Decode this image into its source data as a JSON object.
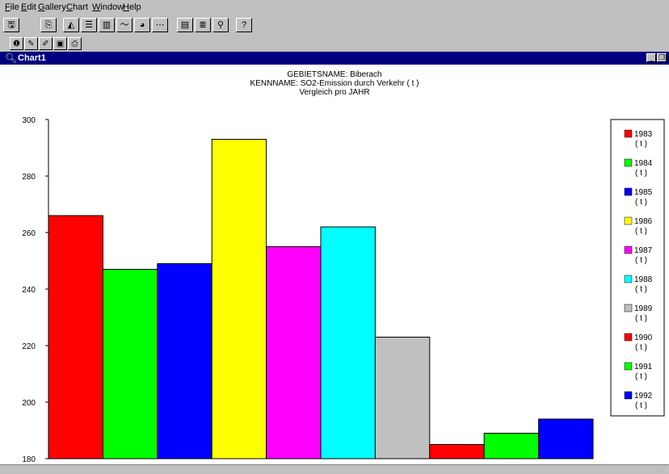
{
  "menu": {
    "items": [
      {
        "label": "File",
        "accel": "F",
        "rest": "ile"
      },
      {
        "label": "Edit",
        "accel": "E",
        "rest": "dit"
      },
      {
        "label": "Gallery",
        "accel": "G",
        "rest": "allery"
      },
      {
        "label": "Chart",
        "accel": "C",
        "rest": "hart"
      },
      {
        "label": "Window",
        "accel": "W",
        "rest": "indow"
      },
      {
        "label": "Help",
        "accel": "H",
        "rest": "elp"
      }
    ]
  },
  "toolbar1": {
    "buttons": [
      {
        "name": "save-icon",
        "glyph": "🖫"
      },
      {
        "name": "copy-icon",
        "glyph": "⎘"
      },
      {
        "name": "area-chart-icon",
        "glyph": "◭"
      },
      {
        "name": "hbar-chart-icon",
        "glyph": "☰"
      },
      {
        "name": "bar-chart-icon",
        "glyph": "▥"
      },
      {
        "name": "line-chart-icon",
        "glyph": "〜"
      },
      {
        "name": "pie-chart-icon",
        "glyph": "◕"
      },
      {
        "name": "scatter-chart-icon",
        "glyph": "⋯"
      },
      {
        "name": "properties-icon",
        "glyph": "▤"
      },
      {
        "name": "legend-icon",
        "glyph": "≣"
      },
      {
        "name": "binoculars-icon",
        "glyph": "⚲"
      },
      {
        "name": "context-help-icon",
        "glyph": "?"
      }
    ]
  },
  "toolbar2": {
    "buttons": [
      {
        "name": "info-icon",
        "glyph": "❶"
      },
      {
        "name": "pen-icon",
        "glyph": "✎"
      },
      {
        "name": "edit-icon",
        "glyph": "✐"
      },
      {
        "name": "picture-icon",
        "glyph": "▣"
      },
      {
        "name": "print-icon",
        "glyph": "⎙"
      }
    ]
  },
  "window": {
    "title": "Chart1"
  },
  "chart_data": {
    "type": "bar",
    "title_lines": [
      "GEBIETSNAME: Biberach",
      "KENNNAME: SO2-Emission durch Verkehr ( t )",
      "Vergleich pro JAHR"
    ],
    "categories": [
      "1983",
      "1984",
      "1985",
      "1986",
      "1987",
      "1988",
      "1989",
      "1990",
      "1991",
      "1992"
    ],
    "values": [
      266,
      247,
      249,
      293,
      255,
      262,
      223,
      185,
      189,
      194
    ],
    "colors": [
      "#ff0000",
      "#00ff00",
      "#0000ff",
      "#ffff00",
      "#ff00ff",
      "#00ffff",
      "#c0c0c0",
      "#ff0000",
      "#00ff00",
      "#0000ff"
    ],
    "legend_unit": "( t )",
    "yticks": [
      180,
      200,
      220,
      240,
      260,
      280,
      300
    ],
    "ylim": [
      180,
      300
    ],
    "grid": false,
    "legend": "right"
  }
}
